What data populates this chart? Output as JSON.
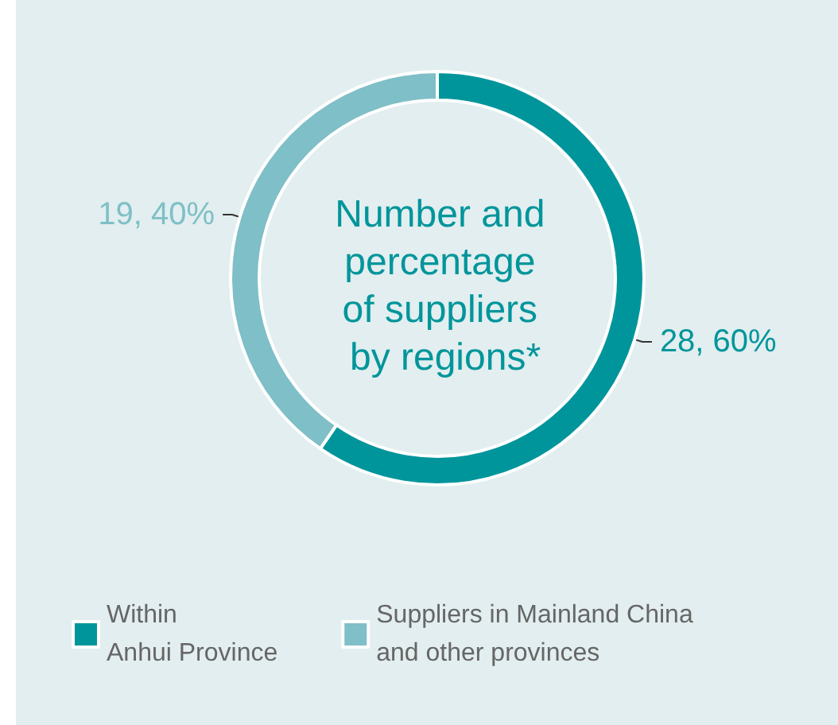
{
  "chart_data": {
    "type": "donut",
    "title": "Number and percentage of suppliers by regions*",
    "categories": [
      "Within\nAnhui Province",
      "Suppliers in Mainland China\nand other provinces"
    ],
    "values": [
      28,
      19
    ],
    "colors": [
      "#00959b",
      "#7fbfc7"
    ],
    "value_labels": [
      "28, 60%",
      "19, 40%"
    ],
    "legend": "bottom"
  }
}
